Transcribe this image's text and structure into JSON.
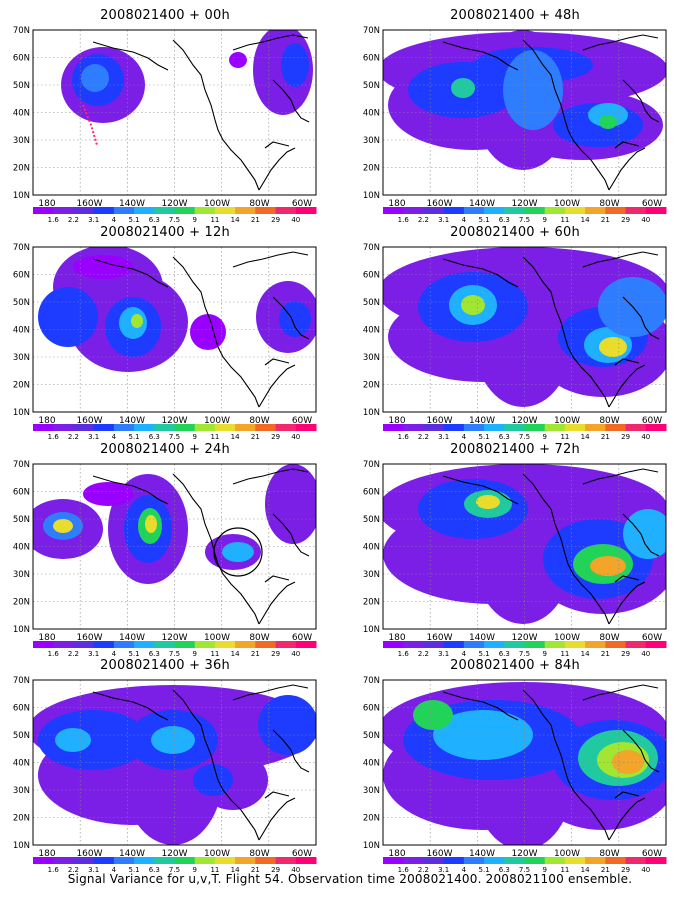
{
  "caption": "Signal Variance for u,v,T. Flight 54. Observation time 2008021400. 2008021100 ensemble.",
  "lat_labels": [
    "70N",
    "60N",
    "50N",
    "40N",
    "30N",
    "20N",
    "10N"
  ],
  "lon_labels": [
    "180",
    "160W",
    "140W",
    "120W",
    "100W",
    "80W",
    "60W"
  ],
  "colorbar": {
    "labels": [
      "1.6",
      "2.2",
      "3.1",
      "4",
      "5.1",
      "6.3",
      "7.5",
      "9",
      "11",
      "14",
      "21",
      "29",
      "40"
    ],
    "colors": [
      "#9a00ff",
      "#7b1ee6",
      "#5d2ee0",
      "#1e3cff",
      "#2f7dff",
      "#1fb0ff",
      "#20c9a0",
      "#22d35a",
      "#a0e632",
      "#e8dc2c",
      "#f2a528",
      "#f06a24",
      "#f0286e",
      "#ff0077"
    ]
  },
  "panels": [
    {
      "title": "2008021400 + 00h",
      "lead_hours": 0
    },
    {
      "title": "2008021400 + 48h",
      "lead_hours": 48
    },
    {
      "title": "2008021400 + 12h",
      "lead_hours": 12
    },
    {
      "title": "2008021400 + 60h",
      "lead_hours": 60
    },
    {
      "title": "2008021400 + 24h",
      "lead_hours": 24
    },
    {
      "title": "2008021400 + 72h",
      "lead_hours": 72
    },
    {
      "title": "2008021400 + 36h",
      "lead_hours": 36
    },
    {
      "title": "2008021400 + 84h",
      "lead_hours": 84
    }
  ]
}
